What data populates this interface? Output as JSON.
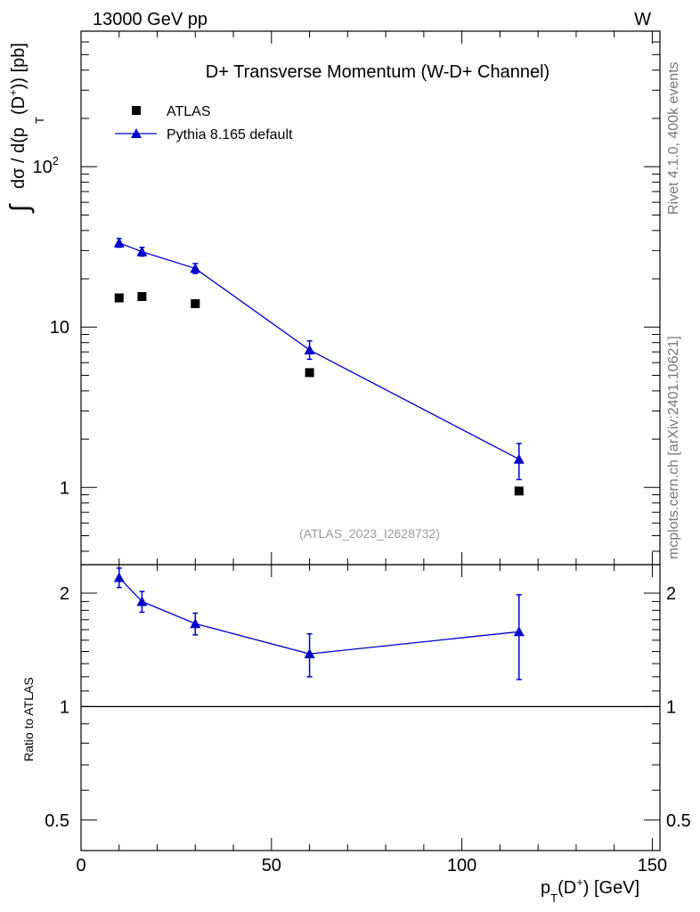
{
  "header": {
    "left": "13000 GeV pp",
    "right": "W"
  },
  "side_text": {
    "rivet": "Rivet 4.1.0,  400k events",
    "source": "mcplots.cern.ch [arXiv:2401.10621]"
  },
  "chart_data": [
    {
      "type": "scatter",
      "title": "D+ Transverse Momentum (W-D+ Channel)",
      "ylabel": "∫ dσ / d(p_T (D+)) [pb]",
      "ylabel_parts": {
        "integral": "∫",
        "main": "dσ / d(p",
        "sub": "T",
        "paren": "(D",
        "sup": "+",
        "unit": ")) [pb]"
      },
      "yscale": "log",
      "ylim": [
        0.33,
        700
      ],
      "xlim": [
        0,
        152
      ],
      "y_ticks": [
        {
          "value": 1,
          "label": "1"
        },
        {
          "value": 10,
          "label": "10"
        },
        {
          "value": 100,
          "label": "10",
          "sup": "2"
        }
      ],
      "annotation": "(ATLAS_2023_I2628732)",
      "legend_position": "top-left",
      "series": [
        {
          "name": "ATLAS",
          "marker": "square",
          "color": "#000000",
          "x": [
            10,
            16,
            30,
            60,
            115
          ],
          "y": [
            15.2,
            15.5,
            14.0,
            5.2,
            0.95
          ]
        },
        {
          "name": "Pythia 8.165 default",
          "marker": "triangle",
          "color": "#0000cc",
          "line": true,
          "x": [
            10,
            16,
            30,
            60,
            115
          ],
          "y": [
            33.5,
            29.5,
            23.2,
            7.2,
            1.5
          ],
          "yerr_low": [
            2.0,
            1.8,
            1.6,
            0.9,
            0.38
          ],
          "yerr_high": [
            2.2,
            1.9,
            1.7,
            1.0,
            0.38
          ]
        }
      ]
    },
    {
      "type": "line",
      "ylabel": "Ratio to ATLAS",
      "xlabel": "p_T(D+) [GeV]",
      "xlabel_parts": {
        "p": "p",
        "sub": "T",
        "paren": "(D",
        "sup": "+",
        "unit": ") [GeV]"
      },
      "yscale": "log",
      "ylim": [
        0.415,
        2.38
      ],
      "xlim": [
        0,
        152
      ],
      "x_ticks": [
        0,
        50,
        100,
        150
      ],
      "y_ticks": [
        0.5,
        1,
        2
      ],
      "y_tick_labels": [
        "0.5",
        "1",
        "2"
      ],
      "reference_line": 1,
      "series": [
        {
          "name": "Pythia 8.165 default / ATLAS",
          "color": "#0000cc",
          "x": [
            10,
            16,
            30,
            60,
            115
          ],
          "y": [
            2.2,
            1.9,
            1.66,
            1.38,
            1.58
          ],
          "yerr_low": [
            0.13,
            0.12,
            0.11,
            0.18,
            0.4
          ],
          "yerr_high": [
            0.13,
            0.12,
            0.11,
            0.18,
            0.4
          ]
        }
      ]
    }
  ]
}
